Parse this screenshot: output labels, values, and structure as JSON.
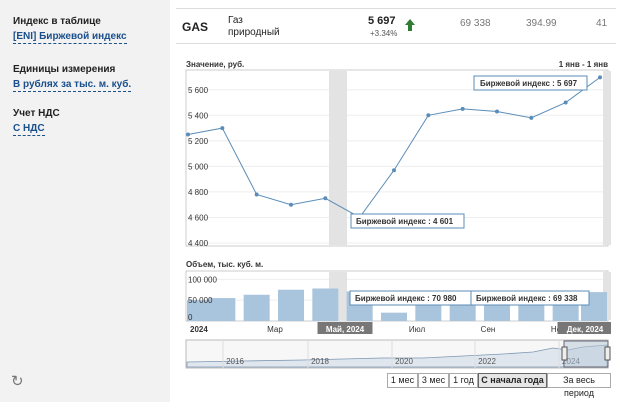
{
  "sidebar": {
    "index_label": "Индекс в таблице",
    "index_value": "[ENI] Биржевой индекс",
    "units_label": "Единицы измерения",
    "units_value": "В рублях за тыс. м. куб.",
    "vat_label": "Учет НДС",
    "vat_value": "С НДС",
    "refresh_icon": "refresh-icon"
  },
  "ticker": {
    "code": "GAS",
    "name_line1": "Газ",
    "name_line2": "природный",
    "price": "5 697",
    "change": "+3.34%",
    "trend": "up",
    "volume": "69 338",
    "value": "394.99",
    "count": "41"
  },
  "chart": {
    "price_panel_title": "Значение, руб.",
    "range_label": "1 янв - 1 янв",
    "volume_panel_title": "Объем, тыс. куб. м.",
    "price_yticks": [
      "5 600",
      "5 400",
      "5 200",
      "5 000",
      "4 800",
      "4 600",
      "4 400"
    ],
    "volume_yticks": [
      "100 000",
      "50 000",
      "0"
    ],
    "x_labels": [
      "2024",
      "Мар",
      "Май, 2024",
      "Июл",
      "Сен",
      "Но",
      "Дек, 2024"
    ],
    "navigator_years": [
      "2016",
      "2018",
      "2020",
      "2022",
      "2024"
    ],
    "tooltips": {
      "price_last": "Биржевой индекс : 5 697",
      "price_min": "Биржевой индекс : 4 601",
      "volume_may": "Биржевой индекс : 70 980",
      "volume_last": "Биржевой индекс : 69 338"
    },
    "line_color": "#5b8db8",
    "bar_color": "#a9c4dd",
    "highlight_color": "#e3e3e3"
  },
  "chart_data": {
    "type": "line",
    "title": "Значение, руб.",
    "ylim": [
      4400,
      5700
    ],
    "series": [
      {
        "name": "Биржевой индекс",
        "values": [
          5250,
          5300,
          4780,
          4700,
          4750,
          4601,
          4970,
          5400,
          5450,
          5430,
          5380,
          5500,
          5697
        ]
      }
    ],
    "volume": {
      "title": "Объем, тыс. куб. м.",
      "ylim": [
        0,
        120000
      ],
      "values": [
        50000,
        55000,
        63000,
        75000,
        78000,
        70980,
        20000,
        68000,
        72000,
        50000,
        68000,
        70000,
        69338
      ]
    }
  },
  "period_buttons": [
    {
      "label": "1 мес",
      "active": false
    },
    {
      "label": "3 мес",
      "active": false
    },
    {
      "label": "1 год",
      "active": false
    },
    {
      "label": "С начала года",
      "active": true
    },
    {
      "label": "За весь период",
      "active": false
    }
  ]
}
